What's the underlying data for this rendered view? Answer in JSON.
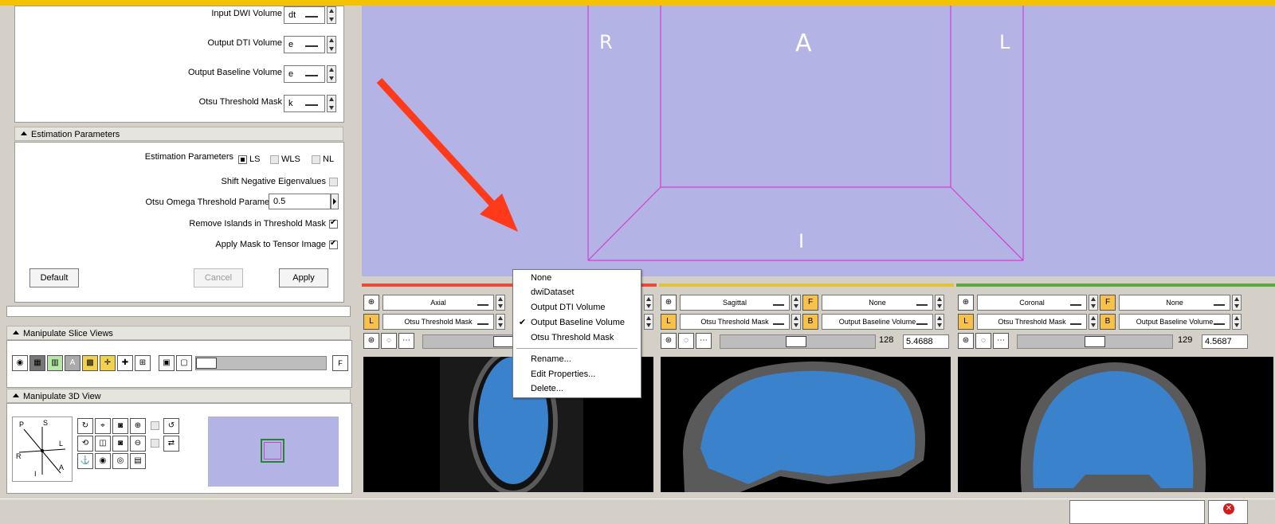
{
  "io": {
    "input_dwi_label": "Input DWI Volume",
    "input_dwi_value": "dt",
    "output_dti_label": "Output DTI Volume",
    "output_dti_value": "e",
    "output_baseline_label": "Output Baseline Volume",
    "output_baseline_value": "e",
    "otsu_mask_label": "Otsu Threshold Mask",
    "otsu_mask_value": "k"
  },
  "estimation": {
    "section_title": "Estimation Parameters",
    "params_label": "Estimation Parameters",
    "opt_ls": "LS",
    "opt_wls": "WLS",
    "opt_nl": "NL",
    "shift_label": "Shift Negative Eigenvalues",
    "omega_label": "Otsu Omega Threshold Parameter",
    "omega_value": "0.5",
    "remove_islands_label": "Remove Islands in Threshold Mask",
    "apply_mask_label": "Apply Mask to Tensor Image"
  },
  "buttons": {
    "default": "Default",
    "cancel": "Cancel",
    "apply": "Apply"
  },
  "manipulate_slice": {
    "title": "Manipulate Slice Views"
  },
  "manipulate_3d": {
    "title": "Manipulate 3D View",
    "axes": {
      "p": "P",
      "s": "S",
      "r": "R",
      "l": "L",
      "i": "I",
      "a": "A"
    }
  },
  "view3d": {
    "left": "R",
    "top": "A",
    "right": "L",
    "bottom": "I"
  },
  "slices": {
    "axial": {
      "orientation": "Axial",
      "fg": "Otsu Threshold Mask"
    },
    "sagittal": {
      "orientation": "Sagittal",
      "bg": "None",
      "fg": "Otsu Threshold Mask",
      "label": "Output Baseline Volume",
      "index": "128",
      "offset": "5.4688"
    },
    "coronal": {
      "orientation": "Coronal",
      "bg": "None",
      "fg": "Otsu Threshold Mask",
      "label": "Output Baseline Volume",
      "index": "129",
      "offset": "4.5687"
    }
  },
  "context_menu": {
    "items": [
      "None",
      "dwiDataset",
      "Output DTI Volume",
      "Output Baseline Volume",
      "Otsu Threshold Mask"
    ],
    "actions": [
      "Rename...",
      "Edit Properties...",
      "Delete..."
    ],
    "checked": "Output Baseline Volume"
  },
  "colors": {
    "accent_bar": "#f5c200",
    "view3d_bg": "#b3b3e6",
    "arrow": "#ff3a1a",
    "box": "#d23fd2",
    "mask_blue": "#3a82cc",
    "axial_border": "#e84a3c",
    "sagittal_border": "#e0c23b",
    "coronal_border": "#5aa845"
  }
}
